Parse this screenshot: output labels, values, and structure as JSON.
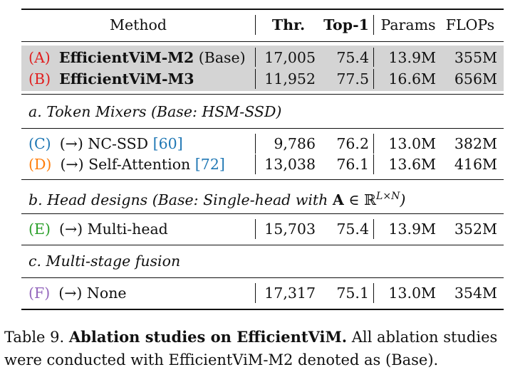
{
  "table": {
    "headers": {
      "method": "Method",
      "thr": "Thr.",
      "top1": "Top-1",
      "params": "Params",
      "flops": "FLOPs"
    },
    "base_rows": [
      {
        "letter": "(A)",
        "name": "EfficientViM-M2",
        "suffix": " (Base)",
        "thr": "17,005",
        "top1": "75.4",
        "params": "13.9M",
        "flops": "355M"
      },
      {
        "letter": "(B)",
        "name": "EfficientViM-M3",
        "suffix": "",
        "thr": "11,952",
        "top1": "77.5",
        "params": "16.6M",
        "flops": "656M"
      }
    ],
    "sections": [
      {
        "title": "a. Token Mixers (Base: HSM-SSD)",
        "rows": [
          {
            "letter": "(C)",
            "text": "(→) NC-SSD",
            "ref": "[60]",
            "thr": "9,786",
            "top1": "76.2",
            "params": "13.0M",
            "flops": "382M"
          },
          {
            "letter": "(D)",
            "text": "(→) Self-Attention",
            "ref": "[72]",
            "thr": "13,038",
            "top1": "76.1",
            "params": "13.6M",
            "flops": "416M"
          }
        ]
      },
      {
        "title_prefix": "b. Head designs (Base: Single-head with ",
        "title_bold": "A",
        "title_mid": " ∈ ℝ",
        "title_sup": "L×N",
        "title_suffix": ")",
        "rows": [
          {
            "letter": "(E)",
            "text": "(→) Multi-head",
            "ref": "",
            "thr": "15,703",
            "top1": "75.4",
            "params": "13.9M",
            "flops": "352M"
          }
        ]
      },
      {
        "title": "c. Multi-stage fusion",
        "rows": [
          {
            "letter": "(F)",
            "text": "(→) None",
            "ref": "",
            "thr": "17,317",
            "top1": "75.1",
            "params": "13.0M",
            "flops": "354M"
          }
        ]
      }
    ]
  },
  "caption": {
    "label": "Table 9.",
    "title": "Ablation studies on EfficientViM.",
    "body": "All ablation studies were conducted with EfficientViM-M2 denoted as (Base)."
  },
  "colors": {
    "A": "#e02020",
    "B": "#e02020",
    "C": "#1f77b4",
    "D": "#ff7f0e",
    "E": "#2ca02c",
    "F": "#9467bd",
    "shade": "#d4d4d4"
  }
}
